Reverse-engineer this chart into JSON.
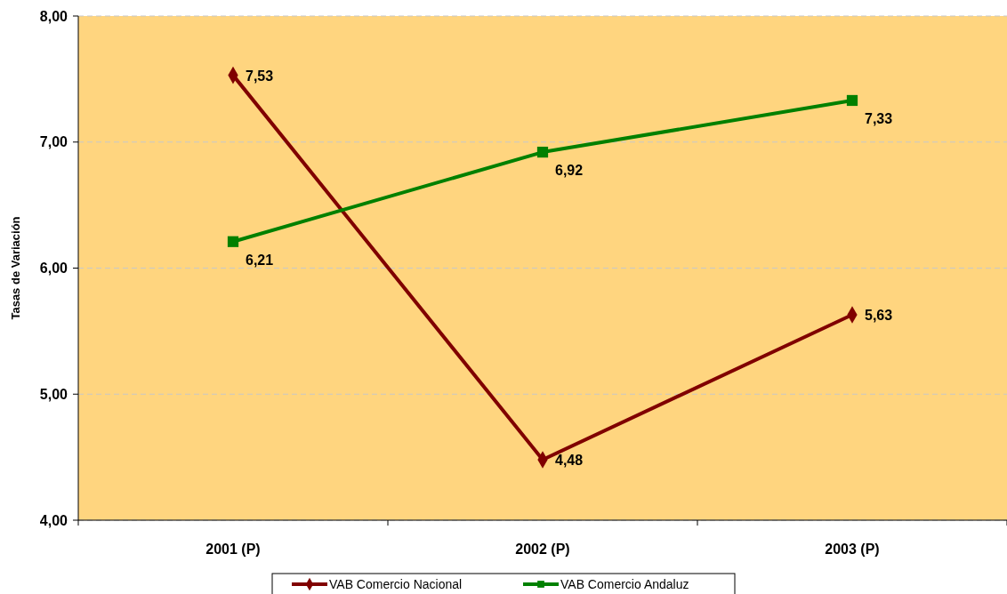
{
  "chart_data": {
    "type": "line",
    "ylabel": "Tasas de Variación",
    "categories": [
      "2001 (P)",
      "2002 (P)",
      "2003 (P)"
    ],
    "series": [
      {
        "name": "VAB Comercio Nacional",
        "color": "#800000",
        "marker": "diamond",
        "values": [
          7.53,
          4.48,
          5.63
        ],
        "value_labels": [
          "7,53",
          "4,48",
          "5,63"
        ]
      },
      {
        "name": "VAB Comercio Andaluz",
        "color": "#008000",
        "marker": "square",
        "values": [
          6.21,
          6.92,
          7.33
        ],
        "value_labels": [
          "6,21",
          "6,92",
          "7,33"
        ]
      }
    ],
    "ylim": [
      4,
      8
    ],
    "yticks": [
      {
        "value": 4,
        "label": "4,00"
      },
      {
        "value": 5,
        "label": "5,00"
      },
      {
        "value": 6,
        "label": "6,00"
      },
      {
        "value": 7,
        "label": "7,00"
      },
      {
        "value": 8,
        "label": "8,00"
      }
    ],
    "grid": "y",
    "legend": "bottom"
  }
}
